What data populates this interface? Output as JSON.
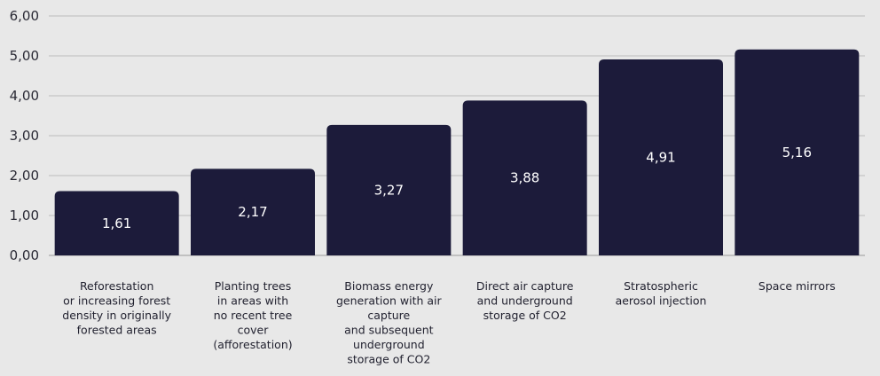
{
  "chart_data": {
    "type": "bar",
    "categories": [
      [
        "Reforestation",
        "or increasing forest",
        "density in originally",
        "forested areas"
      ],
      [
        "Planting trees",
        "in areas with",
        "no recent tree",
        "cover",
        "(afforestation)"
      ],
      [
        "Biomass energy",
        "generation with air",
        "capture",
        "and subsequent",
        "underground",
        "storage of CO2"
      ],
      [
        "Direct air capture",
        "and underground",
        "storage of CO2"
      ],
      [
        "Stratospheric",
        "aerosol injection"
      ],
      [
        "Space mirrors"
      ]
    ],
    "values": [
      1.61,
      2.17,
      3.27,
      3.88,
      4.91,
      5.16
    ],
    "value_labels": [
      "1,61",
      "2,17",
      "3,27",
      "3,88",
      "4,91",
      "5,16"
    ],
    "yticks": [
      0,
      1,
      2,
      3,
      4,
      5,
      6
    ],
    "ytick_labels": [
      "0,00",
      "1,00",
      "2,00",
      "3,00",
      "4,00",
      "5,00",
      "6,00"
    ],
    "ylim": [
      0,
      6
    ],
    "grid": true,
    "colors": {
      "bar": "#1c1b3a",
      "background": "#e8e8e8",
      "grid": "#bdbdbd",
      "value_text": "#ffffff"
    }
  }
}
